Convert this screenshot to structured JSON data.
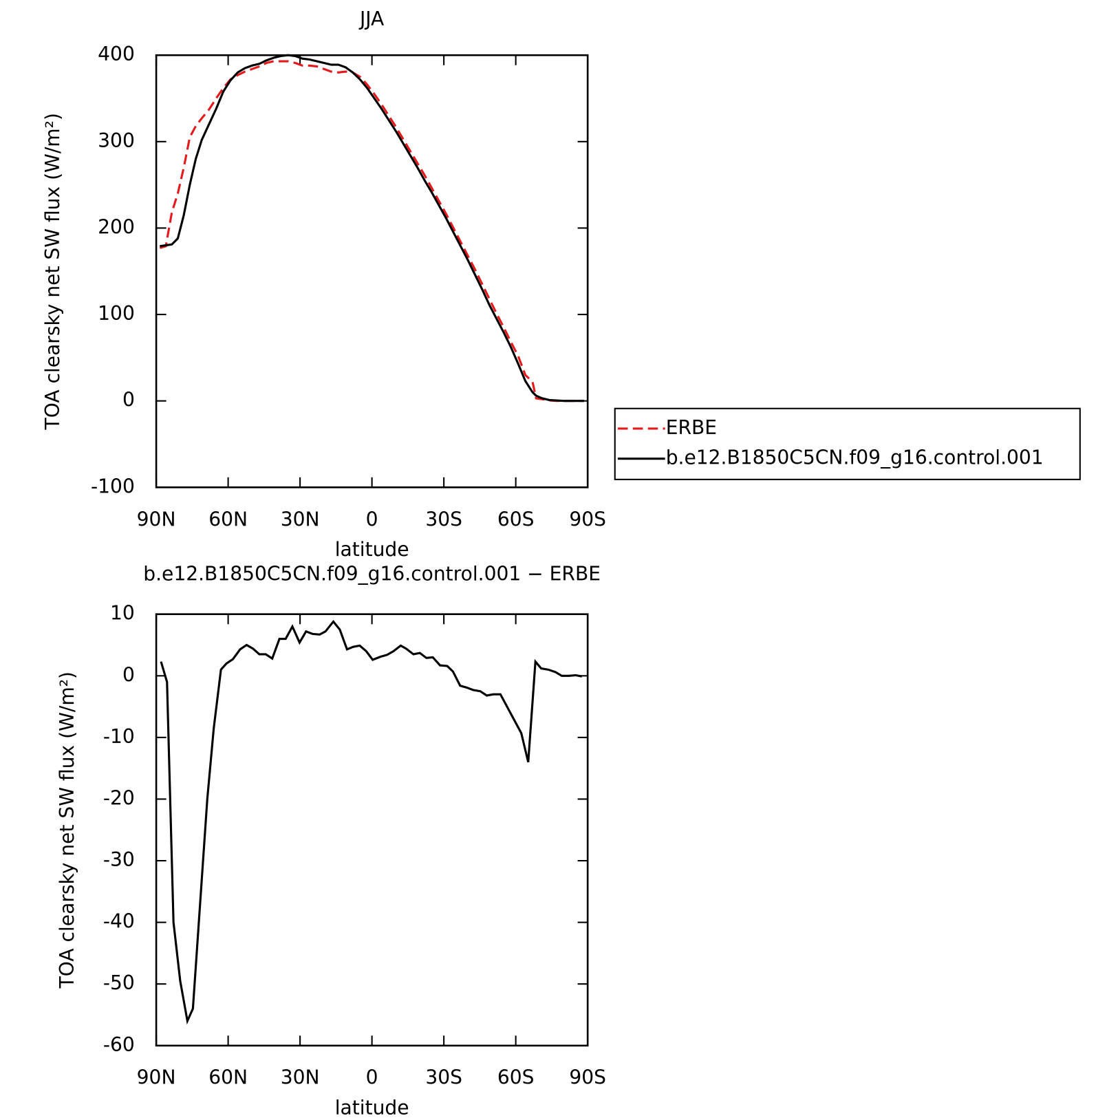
{
  "chart_data": [
    {
      "type": "line",
      "title": "JJA",
      "xlabel": "latitude",
      "ylabel": "TOA clearsky net SW flux (W/m²)",
      "xlim": [
        90,
        -90
      ],
      "xticks": [
        {
          "value": 90,
          "label": "90N"
        },
        {
          "value": 60,
          "label": "60N"
        },
        {
          "value": 30,
          "label": "30N"
        },
        0,
        {
          "value": -30,
          "label": "30S"
        },
        {
          "value": -60,
          "label": "60S"
        },
        {
          "value": -90,
          "label": "90S"
        }
      ],
      "ylim": [
        -100,
        400
      ],
      "yticks": [
        -100,
        0,
        100,
        200,
        300,
        400
      ],
      "legend": "right",
      "x": [
        88.5,
        86,
        83.5,
        81,
        78.5,
        76,
        73.5,
        71,
        68,
        65,
        62,
        59,
        56,
        53,
        50,
        47,
        44,
        41,
        38,
        35,
        32,
        29,
        26,
        23,
        20,
        17,
        14,
        11,
        8,
        5,
        2,
        -1,
        -4,
        -7,
        -10,
        -13,
        -16,
        -19,
        -22,
        -25,
        -28,
        -31,
        -34,
        -37,
        -40,
        -43,
        -46,
        -49,
        -52,
        -55,
        -58,
        -61,
        -64,
        -67,
        -68.5,
        -71,
        -74,
        -77,
        -80,
        -83,
        -86,
        -88.5
      ],
      "series": [
        {
          "name": "ERBE",
          "color": "#e41a1c",
          "style": "dashed",
          "values": [
            177,
            179,
            218,
            240,
            270,
            305,
            318,
            327,
            337,
            350,
            362,
            372,
            377,
            381,
            384,
            387,
            391,
            393,
            393,
            393,
            391,
            388,
            388,
            387,
            384,
            381,
            380,
            381,
            380,
            375,
            366,
            355,
            343,
            330,
            317,
            303,
            289,
            275,
            261,
            246,
            231,
            216,
            200,
            184,
            168,
            152,
            135,
            118,
            101,
            85,
            68,
            52,
            30,
            22,
            3,
            2,
            0.5,
            0,
            0,
            0,
            0,
            0
          ]
        },
        {
          "name": "b.e12.B1850C5CN.f09_g16.control.001",
          "color": "#000000",
          "style": "solid",
          "values": [
            179,
            180,
            181,
            188,
            215,
            250,
            280,
            302,
            320,
            338,
            358,
            371,
            380,
            385,
            388,
            390,
            394,
            397,
            399,
            400,
            399,
            396,
            395,
            393,
            391,
            389,
            389,
            386,
            380,
            372,
            362,
            350,
            338,
            325,
            312,
            298,
            284,
            270,
            255,
            241,
            226,
            211,
            195,
            179,
            163,
            146,
            129,
            111,
            95,
            79,
            62,
            43,
            23,
            10,
            6,
            3,
            1,
            0.5,
            0,
            0,
            0,
            0
          ]
        }
      ]
    },
    {
      "type": "line",
      "title": "b.e12.B1850C5CN.f09_g16.control.001 − ERBE",
      "xlabel": "latitude",
      "ylabel": "TOA clearsky net SW flux (W/m²)",
      "xlim": [
        90,
        -90
      ],
      "xticks": [
        {
          "value": 90,
          "label": "90N"
        },
        {
          "value": 60,
          "label": "60N"
        },
        {
          "value": 30,
          "label": "30N"
        },
        0,
        {
          "value": -30,
          "label": "30S"
        },
        {
          "value": -60,
          "label": "60S"
        },
        {
          "value": -90,
          "label": "90S"
        }
      ],
      "ylim": [
        -60,
        10
      ],
      "yticks": [
        -60,
        -50,
        -40,
        -30,
        -20,
        -10,
        0,
        10
      ],
      "x": [
        88,
        85.5,
        82.8,
        80,
        77,
        74.7,
        68.7,
        66,
        63,
        60.7,
        58,
        55,
        52.3,
        49.6,
        47,
        44.3,
        41.6,
        38.6,
        36,
        33.2,
        30.2,
        27.5,
        24.8,
        21.8,
        19.4,
        16.1,
        13.4,
        10.4,
        7.8,
        5.1,
        2.4,
        -0.3,
        -3.6,
        -6.3,
        -9,
        -12,
        -14.3,
        -17.3,
        -20,
        -22.7,
        -25.4,
        -28.4,
        -31.4,
        -33.8,
        -36.8,
        -39.5,
        -42.2,
        -45.2,
        -47.9,
        -50.6,
        -53.6,
        -62.3,
        -65.2,
        -68.2,
        -70.6,
        -73.6,
        -76.6,
        -79.2,
        -82.2,
        -84.9,
        -87.6
      ],
      "series": [
        {
          "color": "#000000",
          "style": "solid",
          "values": [
            2.3,
            -1,
            -40,
            -49.5,
            -56,
            -54,
            -20,
            -8.5,
            1,
            2,
            2.7,
            4.3,
            5,
            4.4,
            3.5,
            3.5,
            2.8,
            6,
            6,
            8,
            5.4,
            7.2,
            6.8,
            6.7,
            7.2,
            8.8,
            7.5,
            4.3,
            4.7,
            4.9,
            4,
            2.6,
            3.1,
            3.4,
            4,
            4.9,
            4.4,
            3.5,
            3.7,
            2.9,
            3,
            1.7,
            1.6,
            0.7,
            -1.6,
            -1.9,
            -2.3,
            -2.5,
            -3.2,
            -3,
            -3,
            -9.3,
            -14,
            2.3,
            1.2,
            1,
            0.6,
            0,
            0,
            0.1,
            -0.1
          ]
        }
      ]
    }
  ]
}
